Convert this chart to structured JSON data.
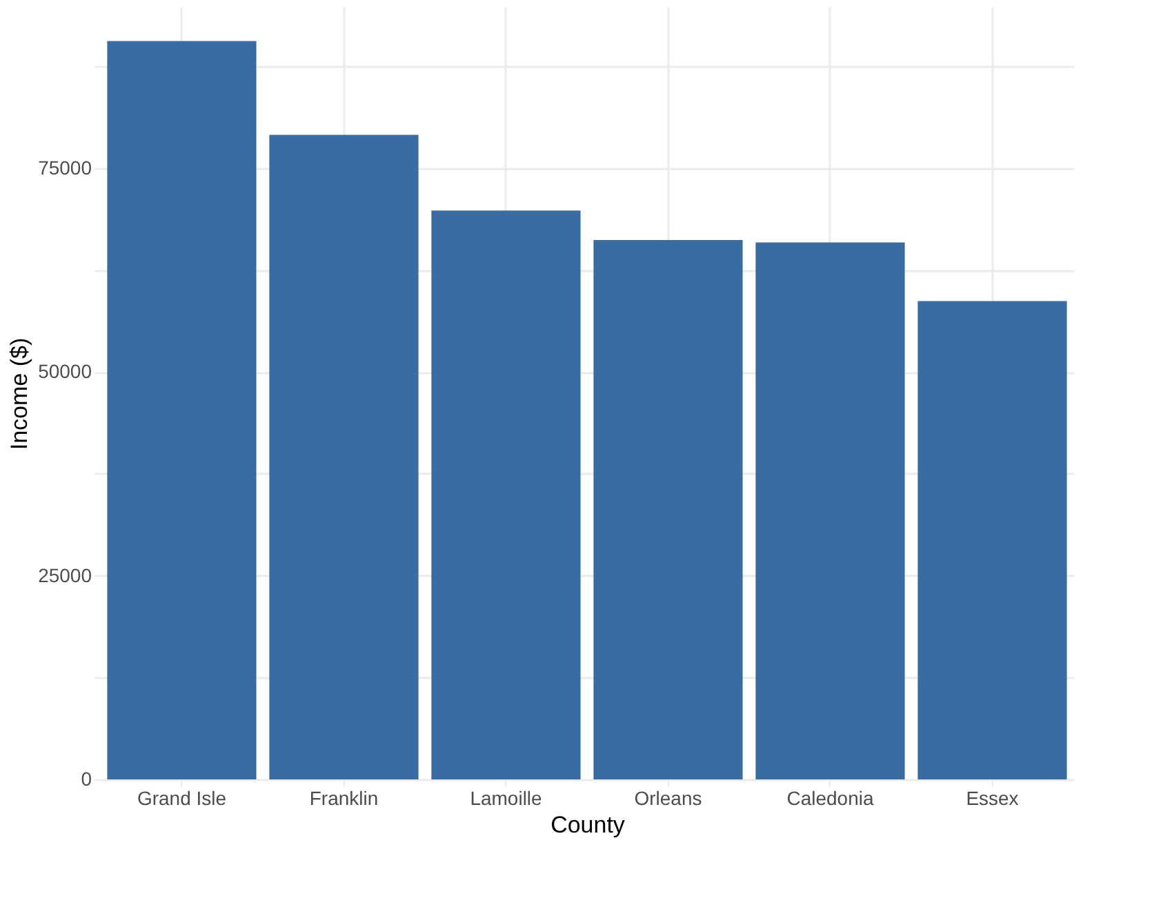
{
  "chart_data": {
    "type": "bar",
    "xlabel": "County",
    "ylabel": "Income ($)",
    "categories": [
      "Grand Isle",
      "Franklin",
      "Lamoille",
      "Orleans",
      "Caledonia",
      "Essex"
    ],
    "values": [
      90600,
      79100,
      69800,
      66200,
      65900,
      58700
    ],
    "color": "#3a6ca4",
    "ylim": [
      0,
      94800
    ],
    "yticks": [
      0,
      {
        "value": 12500,
        "label": null
      },
      25000,
      {
        "value": 37500,
        "label": null
      },
      50000,
      {
        "value": 62500,
        "label": null
      },
      75000,
      {
        "value": 87500,
        "label": null
      }
    ],
    "grid": true
  }
}
